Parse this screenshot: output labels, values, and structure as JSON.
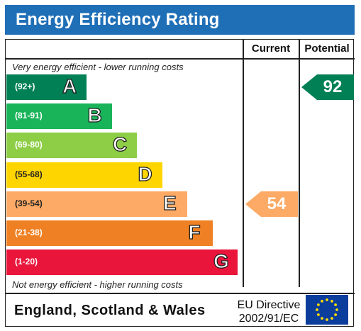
{
  "header": {
    "title": "Energy Efficiency Rating"
  },
  "columns": {
    "current": "Current",
    "potential": "Potential"
  },
  "captions": {
    "top": "Very energy efficient - lower running costs",
    "bottom": "Not energy efficient - higher running costs"
  },
  "chart_data": {
    "type": "bar",
    "title": "Energy Efficiency Rating",
    "bands": [
      {
        "letter": "A",
        "range": "(92+)",
        "color": "#008054"
      },
      {
        "letter": "B",
        "range": "(81-91)",
        "color": "#19b459"
      },
      {
        "letter": "C",
        "range": "(69-80)",
        "color": "#8dce46"
      },
      {
        "letter": "D",
        "range": "(55-68)",
        "color": "#ffd500"
      },
      {
        "letter": "E",
        "range": "(39-54)",
        "color": "#fcaa65"
      },
      {
        "letter": "F",
        "range": "(21-38)",
        "color": "#ef8023"
      },
      {
        "letter": "G",
        "range": "(1-20)",
        "color": "#e9153b"
      }
    ],
    "current": {
      "value": 54,
      "band": "E",
      "color": "#fcaa65"
    },
    "potential": {
      "value": 92,
      "band": "A",
      "color": "#008054"
    }
  },
  "footer": {
    "country": "England, Scotland & Wales",
    "directive_line1": "EU Directive",
    "directive_line2": "2002/91/EC"
  }
}
